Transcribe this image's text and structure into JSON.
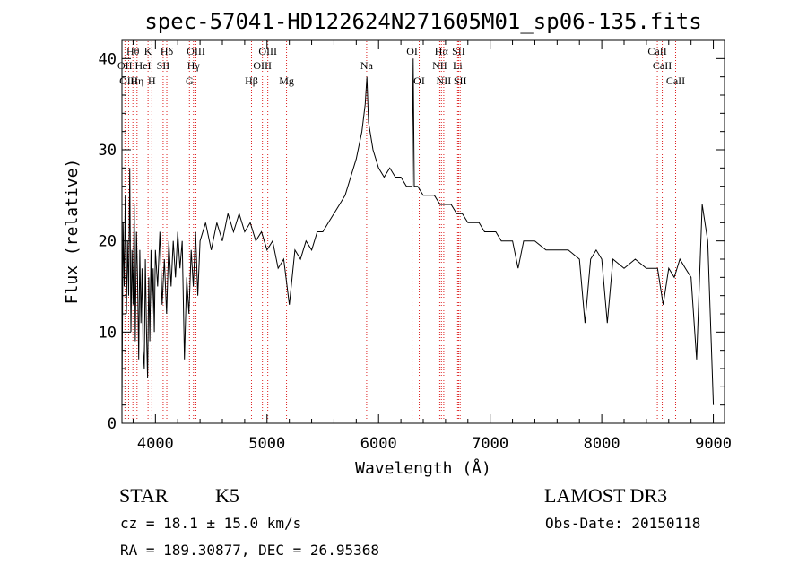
{
  "chart_data": {
    "type": "line",
    "title": "spec-57041-HD122624N271605M01_sp06-135.fits",
    "xlabel": "Wavelength (Å)",
    "ylabel": "Flux (relative)",
    "xlim": [
      3700,
      9100
    ],
    "ylim": [
      0,
      42
    ],
    "xticks": [
      4000,
      5000,
      6000,
      7000,
      8000,
      9000
    ],
    "yticks": [
      0,
      10,
      20,
      30,
      40
    ],
    "grid": false,
    "series": [
      {
        "name": "flux",
        "points": [
          [
            3700,
            2
          ],
          [
            3710,
            22
          ],
          [
            3720,
            15
          ],
          [
            3730,
            25
          ],
          [
            3740,
            12
          ],
          [
            3750,
            20
          ],
          [
            3760,
            14
          ],
          [
            3770,
            28
          ],
          [
            3780,
            10
          ],
          [
            3790,
            19
          ],
          [
            3800,
            13
          ],
          [
            3810,
            24
          ],
          [
            3820,
            9
          ],
          [
            3830,
            21
          ],
          [
            3840,
            16
          ],
          [
            3850,
            7
          ],
          [
            3860,
            19
          ],
          [
            3870,
            11
          ],
          [
            3880,
            17
          ],
          [
            3890,
            8
          ],
          [
            3900,
            6
          ],
          [
            3910,
            18
          ],
          [
            3920,
            10
          ],
          [
            3930,
            5
          ],
          [
            3940,
            16
          ],
          [
            3950,
            9
          ],
          [
            3960,
            19
          ],
          [
            3970,
            12
          ],
          [
            3980,
            17
          ],
          [
            3990,
            10
          ],
          [
            4000,
            19
          ],
          [
            4020,
            15
          ],
          [
            4040,
            21
          ],
          [
            4060,
            13
          ],
          [
            4080,
            18
          ],
          [
            4100,
            12
          ],
          [
            4120,
            20
          ],
          [
            4140,
            15
          ],
          [
            4160,
            20
          ],
          [
            4180,
            16
          ],
          [
            4200,
            21
          ],
          [
            4220,
            17
          ],
          [
            4240,
            20
          ],
          [
            4260,
            7
          ],
          [
            4280,
            16
          ],
          [
            4300,
            12
          ],
          [
            4320,
            19
          ],
          [
            4340,
            15
          ],
          [
            4360,
            21
          ],
          [
            4380,
            14
          ],
          [
            4400,
            20
          ],
          [
            4450,
            22
          ],
          [
            4500,
            19
          ],
          [
            4550,
            22
          ],
          [
            4600,
            20
          ],
          [
            4650,
            23
          ],
          [
            4700,
            21
          ],
          [
            4750,
            23
          ],
          [
            4800,
            21
          ],
          [
            4850,
            22
          ],
          [
            4900,
            20
          ],
          [
            4950,
            21
          ],
          [
            5000,
            19
          ],
          [
            5050,
            20
          ],
          [
            5100,
            17
          ],
          [
            5150,
            18
          ],
          [
            5200,
            13
          ],
          [
            5250,
            19
          ],
          [
            5300,
            18
          ],
          [
            5350,
            20
          ],
          [
            5400,
            19
          ],
          [
            5450,
            21
          ],
          [
            5500,
            21
          ],
          [
            5550,
            22
          ],
          [
            5600,
            23
          ],
          [
            5650,
            24
          ],
          [
            5700,
            25
          ],
          [
            5750,
            27
          ],
          [
            5800,
            29
          ],
          [
            5850,
            32
          ],
          [
            5880,
            35
          ],
          [
            5895,
            38
          ],
          [
            5910,
            33
          ],
          [
            5950,
            30
          ],
          [
            6000,
            28
          ],
          [
            6050,
            27
          ],
          [
            6100,
            28
          ],
          [
            6150,
            27
          ],
          [
            6200,
            27
          ],
          [
            6250,
            26
          ],
          [
            6300,
            26
          ],
          [
            6310,
            40
          ],
          [
            6320,
            26
          ],
          [
            6350,
            26
          ],
          [
            6400,
            25
          ],
          [
            6450,
            25
          ],
          [
            6500,
            25
          ],
          [
            6550,
            24
          ],
          [
            6600,
            24
          ],
          [
            6650,
            24
          ],
          [
            6700,
            23
          ],
          [
            6750,
            23
          ],
          [
            6800,
            22
          ],
          [
            6850,
            22
          ],
          [
            6900,
            22
          ],
          [
            6950,
            21
          ],
          [
            7000,
            21
          ],
          [
            7050,
            21
          ],
          [
            7100,
            20
          ],
          [
            7150,
            20
          ],
          [
            7200,
            20
          ],
          [
            7250,
            17
          ],
          [
            7300,
            20
          ],
          [
            7400,
            20
          ],
          [
            7500,
            19
          ],
          [
            7600,
            19
          ],
          [
            7700,
            19
          ],
          [
            7800,
            18
          ],
          [
            7850,
            11
          ],
          [
            7900,
            18
          ],
          [
            7950,
            19
          ],
          [
            8000,
            18
          ],
          [
            8050,
            11
          ],
          [
            8100,
            18
          ],
          [
            8200,
            17
          ],
          [
            8300,
            18
          ],
          [
            8400,
            17
          ],
          [
            8500,
            17
          ],
          [
            8550,
            13
          ],
          [
            8600,
            17
          ],
          [
            8650,
            16
          ],
          [
            8700,
            18
          ],
          [
            8750,
            17
          ],
          [
            8800,
            16
          ],
          [
            8850,
            7
          ],
          [
            8900,
            24
          ],
          [
            8950,
            20
          ],
          [
            9000,
            2
          ]
        ]
      }
    ],
    "lines": [
      {
        "name": "Hθ",
        "wave": 3798,
        "row": 1
      },
      {
        "name": "OII",
        "wave": 3727,
        "row": 2
      },
      {
        "name": "OIII",
        "wave": 3760,
        "row": 3
      },
      {
        "name": "Hη",
        "wave": 3835,
        "row": 3
      },
      {
        "name": "K",
        "wave": 3934,
        "row": 1
      },
      {
        "name": "HeI",
        "wave": 3889,
        "row": 2
      },
      {
        "name": "H",
        "wave": 3968,
        "row": 3
      },
      {
        "name": "Hδ",
        "wave": 4102,
        "row": 1
      },
      {
        "name": "SII",
        "wave": 4069,
        "row": 2
      },
      {
        "name": "OIII",
        "wave": 4363,
        "row": 1
      },
      {
        "name": "Hγ",
        "wave": 4341,
        "row": 2
      },
      {
        "name": "G",
        "wave": 4305,
        "row": 3
      },
      {
        "name": "OIII",
        "wave": 5007,
        "row": 1
      },
      {
        "name": "OIII",
        "wave": 4959,
        "row": 2
      },
      {
        "name": "Hβ",
        "wave": 4861,
        "row": 3
      },
      {
        "name": "Mg",
        "wave": 5175,
        "row": 3
      },
      {
        "name": "Na",
        "wave": 5893,
        "row": 2
      },
      {
        "name": "OI",
        "wave": 6300,
        "row": 1
      },
      {
        "name": "OI",
        "wave": 6364,
        "row": 3
      },
      {
        "name": "Hα",
        "wave": 6563,
        "row": 1
      },
      {
        "name": "SII",
        "wave": 6717,
        "row": 1
      },
      {
        "name": "NII",
        "wave": 6548,
        "row": 2
      },
      {
        "name": "Li",
        "wave": 6708,
        "row": 2
      },
      {
        "name": "NII",
        "wave": 6584,
        "row": 3
      },
      {
        "name": "SII",
        "wave": 6731,
        "row": 3
      },
      {
        "name": "CaII",
        "wave": 8498,
        "row": 1
      },
      {
        "name": "CaII",
        "wave": 8542,
        "row": 2
      },
      {
        "name": "CaII",
        "wave": 8662,
        "row": 3
      }
    ]
  },
  "info": {
    "class": "STAR",
    "subclass": "K5",
    "survey": "LAMOST DR3",
    "cz": "cz = 18.1 ± 15.0 km/s",
    "obs_date": "Obs-Date: 20150118",
    "coords": "RA = 189.30877, DEC =  26.95368"
  }
}
